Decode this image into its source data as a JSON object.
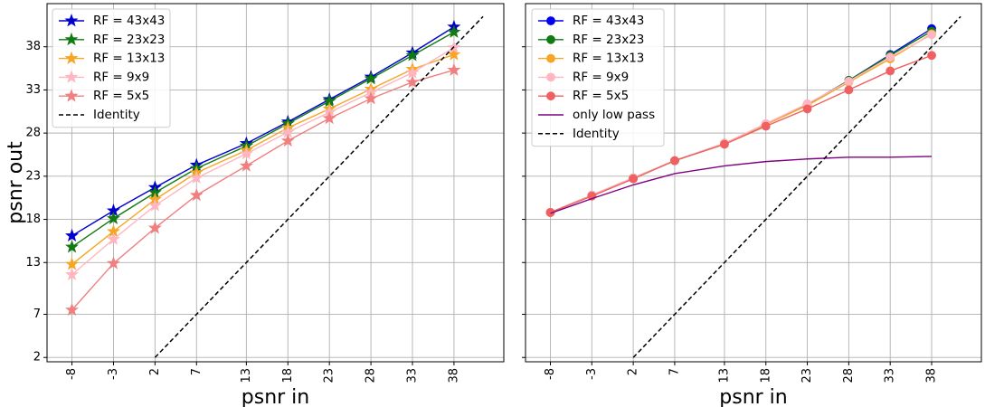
{
  "chart_data": [
    {
      "type": "line",
      "title": "",
      "xlabel": "psnr in",
      "ylabel": "psnr out",
      "x": [
        -8,
        -3,
        2,
        7,
        13,
        18,
        23,
        28,
        33,
        38
      ],
      "xticks": [
        "-8",
        "-3",
        "2",
        "7",
        "13",
        "18",
        "23",
        "28",
        "33",
        "38"
      ],
      "yticks": [
        "2",
        "7",
        "13",
        "18",
        "23",
        "28",
        "33",
        "38"
      ],
      "xlim": [
        -11,
        44
      ],
      "ylim": [
        1.5,
        43
      ],
      "grid": true,
      "legend": "top-left",
      "marker": "star",
      "series": [
        {
          "name": "RF = 43x43",
          "color": "#0000cc",
          "values": [
            16.1,
            19.0,
            21.7,
            24.3,
            26.8,
            29.3,
            31.9,
            34.5,
            37.3,
            40.3
          ]
        },
        {
          "name": "RF = 23x23",
          "color": "#117a11",
          "values": [
            14.8,
            18.1,
            21.1,
            23.9,
            26.5,
            29.1,
            31.7,
            34.3,
            37.0,
            39.7
          ]
        },
        {
          "name": "RF = 13x13",
          "color": "#f5a623",
          "values": [
            12.8,
            16.6,
            20.3,
            23.4,
            26.0,
            28.6,
            30.8,
            33.1,
            35.4,
            37.1
          ]
        },
        {
          "name": "RF = 9x9",
          "color": "#ffb6c1",
          "values": [
            11.6,
            15.7,
            19.6,
            22.8,
            25.6,
            28.1,
            30.4,
            32.7,
            35.0,
            37.9
          ]
        },
        {
          "name": "RF = 5x5",
          "color": "#f08080",
          "values": [
            7.5,
            12.9,
            17.0,
            20.8,
            24.2,
            27.1,
            29.7,
            32.0,
            33.9,
            35.3
          ]
        },
        {
          "name": "Identity",
          "color": "#000000",
          "dashed": true,
          "x": [
            2,
            41.5
          ],
          "values": [
            2,
            41.5
          ]
        }
      ]
    },
    {
      "type": "line",
      "title": "",
      "xlabel": "psnr in",
      "ylabel": "",
      "x": [
        -8,
        -3,
        2,
        7,
        13,
        18,
        23,
        28,
        33,
        38
      ],
      "xticks": [
        "-8",
        "-3",
        "2",
        "7",
        "13",
        "18",
        "23",
        "28",
        "33",
        "38"
      ],
      "yticks": [
        "2",
        "7",
        "13",
        "18",
        "23",
        "28",
        "33",
        "38"
      ],
      "xlim": [
        -11,
        44
      ],
      "ylim": [
        1.5,
        43
      ],
      "grid": true,
      "legend": "top-left",
      "marker": "circle",
      "series": [
        {
          "name": "RF = 43x43",
          "color": "#0000ee",
          "values": [
            18.8,
            20.8,
            22.8,
            24.8,
            26.8,
            29.0,
            31.3,
            34.1,
            37.1,
            40.1
          ]
        },
        {
          "name": "RF = 23x23",
          "color": "#117a11",
          "values": [
            18.8,
            20.8,
            22.8,
            24.8,
            26.8,
            29.0,
            31.3,
            34.1,
            37.0,
            39.8
          ]
        },
        {
          "name": "RF = 13x13",
          "color": "#f5a623",
          "values": [
            18.8,
            20.8,
            22.8,
            24.8,
            26.8,
            29.0,
            31.2,
            33.9,
            36.6,
            39.5
          ]
        },
        {
          "name": "RF = 9x9",
          "color": "#ffb6c1",
          "values": [
            18.8,
            20.8,
            22.8,
            24.8,
            26.8,
            29.1,
            31.4,
            34.0,
            36.8,
            39.4
          ]
        },
        {
          "name": "RF = 5x5",
          "color": "#f06060",
          "values": [
            18.8,
            20.7,
            22.7,
            24.8,
            26.7,
            28.8,
            30.8,
            33.0,
            35.2,
            37.0
          ]
        },
        {
          "name": "only low pass",
          "color": "#800080",
          "marker": "none",
          "values": [
            18.7,
            20.4,
            22.0,
            23.3,
            24.2,
            24.7,
            25.0,
            25.2,
            25.2,
            25.3
          ]
        },
        {
          "name": "Identity",
          "color": "#000000",
          "dashed": true,
          "x": [
            2,
            41.5
          ],
          "values": [
            2,
            41.5
          ]
        }
      ]
    }
  ]
}
